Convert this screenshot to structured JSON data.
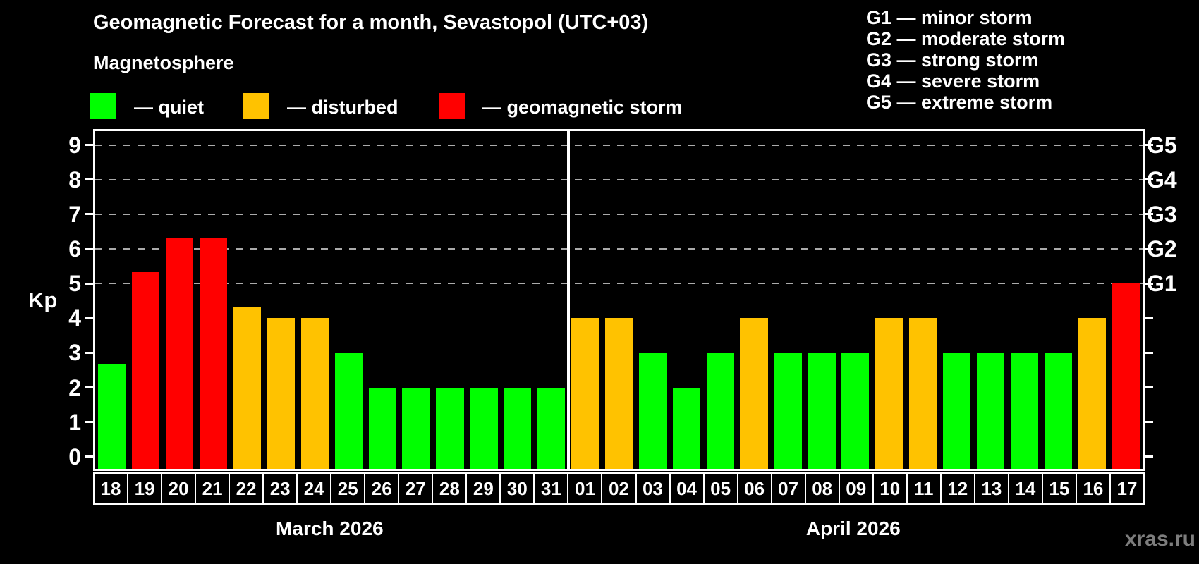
{
  "title": "Geomagnetic Forecast for a month, Sevastopol (UTC+03)",
  "subtitle": "Magnetosphere",
  "watermark": "xras.ru",
  "colors": {
    "quiet": "#00ff00",
    "disturbed": "#ffc200",
    "storm": "#ff0000",
    "background": "#000000",
    "text": "#ffffff",
    "grid": "#ababab",
    "watermark": "#7d7d7d"
  },
  "bar_legend": [
    {
      "status": "quiet",
      "label": "— quiet"
    },
    {
      "status": "disturbed",
      "label": "— disturbed"
    },
    {
      "status": "storm",
      "label": "— geomagnetic storm"
    }
  ],
  "g_legend": [
    "G1 — minor storm",
    "G2 — moderate storm",
    "G3 — strong storm",
    "G4 — severe storm",
    "G5 — extreme storm"
  ],
  "axis": {
    "y_label": "Kp",
    "y_ticks": [
      0,
      1,
      2,
      3,
      4,
      5,
      6,
      7,
      8,
      9
    ],
    "gridlines": [
      5,
      6,
      7,
      8,
      9
    ],
    "right_labels": [
      {
        "text": "G1",
        "kp": 5
      },
      {
        "text": "G2",
        "kp": 6
      },
      {
        "text": "G3",
        "kp": 7
      },
      {
        "text": "G4",
        "kp": 8
      },
      {
        "text": "G5",
        "kp": 9
      }
    ]
  },
  "months": [
    {
      "label": "March 2026",
      "days": 14
    },
    {
      "label": "April 2026",
      "days": 17
    }
  ],
  "chart_data": {
    "type": "bar",
    "title": "Geomagnetic Forecast for a month, Sevastopol (UTC+03)",
    "ylabel": "Kp",
    "ylim": [
      0,
      9.4
    ],
    "legend_position": "top",
    "grid": "dashed horizontal at Kp 5-9 (G1-G5)",
    "categories": [
      "18",
      "19",
      "20",
      "21",
      "22",
      "23",
      "24",
      "25",
      "26",
      "27",
      "28",
      "29",
      "30",
      "31",
      "01",
      "02",
      "03",
      "04",
      "05",
      "06",
      "07",
      "08",
      "09",
      "10",
      "11",
      "12",
      "13",
      "14",
      "15",
      "16",
      "17"
    ],
    "points": [
      {
        "month": "March 2026",
        "day": "18",
        "kp": 2.67,
        "status": "quiet"
      },
      {
        "month": "March 2026",
        "day": "19",
        "kp": 5.33,
        "status": "storm"
      },
      {
        "month": "March 2026",
        "day": "20",
        "kp": 6.33,
        "status": "storm"
      },
      {
        "month": "March 2026",
        "day": "21",
        "kp": 6.33,
        "status": "storm"
      },
      {
        "month": "March 2026",
        "day": "22",
        "kp": 4.33,
        "status": "disturbed"
      },
      {
        "month": "March 2026",
        "day": "23",
        "kp": 4.0,
        "status": "disturbed"
      },
      {
        "month": "March 2026",
        "day": "24",
        "kp": 4.0,
        "status": "disturbed"
      },
      {
        "month": "March 2026",
        "day": "25",
        "kp": 3.0,
        "status": "quiet"
      },
      {
        "month": "March 2026",
        "day": "26",
        "kp": 2.0,
        "status": "quiet"
      },
      {
        "month": "March 2026",
        "day": "27",
        "kp": 2.0,
        "status": "quiet"
      },
      {
        "month": "March 2026",
        "day": "28",
        "kp": 2.0,
        "status": "quiet"
      },
      {
        "month": "March 2026",
        "day": "29",
        "kp": 2.0,
        "status": "quiet"
      },
      {
        "month": "March 2026",
        "day": "30",
        "kp": 2.0,
        "status": "quiet"
      },
      {
        "month": "March 2026",
        "day": "31",
        "kp": 2.0,
        "status": "quiet"
      },
      {
        "month": "April 2026",
        "day": "01",
        "kp": 4.0,
        "status": "disturbed"
      },
      {
        "month": "April 2026",
        "day": "02",
        "kp": 4.0,
        "status": "disturbed"
      },
      {
        "month": "April 2026",
        "day": "03",
        "kp": 3.0,
        "status": "quiet"
      },
      {
        "month": "April 2026",
        "day": "04",
        "kp": 2.0,
        "status": "quiet"
      },
      {
        "month": "April 2026",
        "day": "05",
        "kp": 3.0,
        "status": "quiet"
      },
      {
        "month": "April 2026",
        "day": "06",
        "kp": 4.0,
        "status": "disturbed"
      },
      {
        "month": "April 2026",
        "day": "07",
        "kp": 3.0,
        "status": "quiet"
      },
      {
        "month": "April 2026",
        "day": "08",
        "kp": 3.0,
        "status": "quiet"
      },
      {
        "month": "April 2026",
        "day": "09",
        "kp": 3.0,
        "status": "quiet"
      },
      {
        "month": "April 2026",
        "day": "10",
        "kp": 4.0,
        "status": "disturbed"
      },
      {
        "month": "April 2026",
        "day": "11",
        "kp": 4.0,
        "status": "disturbed"
      },
      {
        "month": "April 2026",
        "day": "12",
        "kp": 3.0,
        "status": "quiet"
      },
      {
        "month": "April 2026",
        "day": "13",
        "kp": 3.0,
        "status": "quiet"
      },
      {
        "month": "April 2026",
        "day": "14",
        "kp": 3.0,
        "status": "quiet"
      },
      {
        "month": "April 2026",
        "day": "15",
        "kp": 3.0,
        "status": "quiet"
      },
      {
        "month": "April 2026",
        "day": "16",
        "kp": 4.0,
        "status": "disturbed"
      },
      {
        "month": "April 2026",
        "day": "17",
        "kp": 5.0,
        "status": "storm"
      }
    ]
  }
}
